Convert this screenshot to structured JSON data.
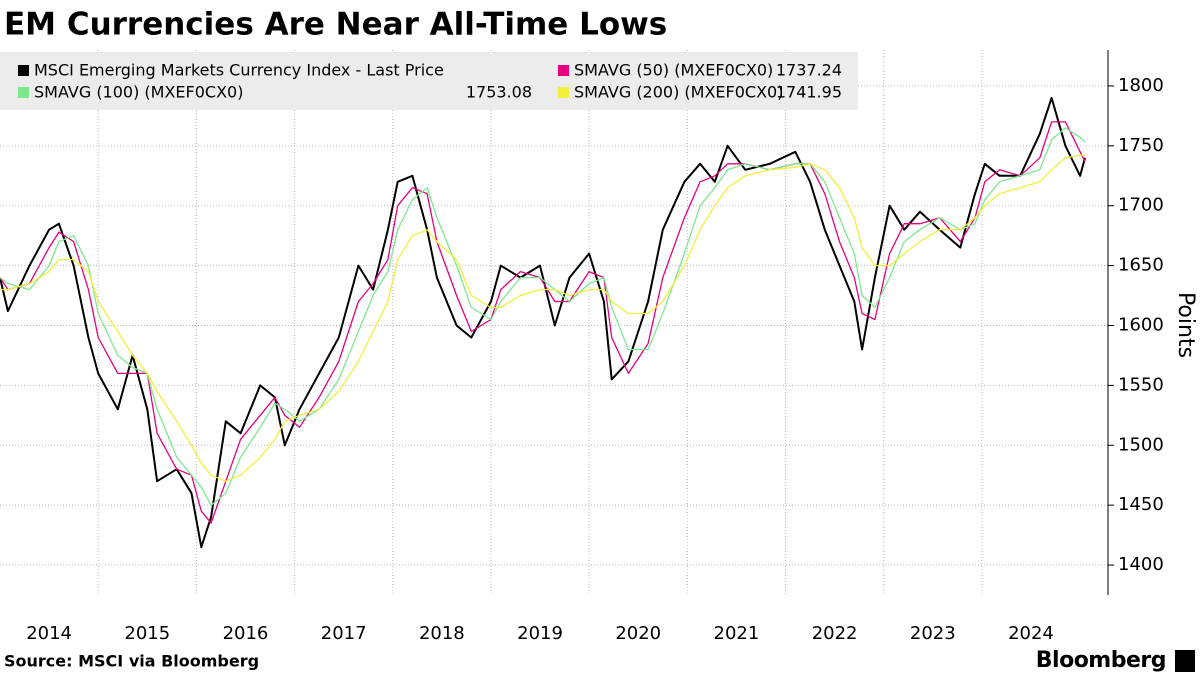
{
  "chart_data": {
    "type": "line",
    "title": "EM Currencies Are Near All-Time Lows",
    "source": "Source: MSCI via Bloomberg",
    "brand": "Bloomberg",
    "y_axis_label": "Points",
    "xlim": [
      2014,
      2025.05
    ],
    "xticks": [
      {
        "value": 2014.5,
        "label": "2014"
      },
      {
        "value": 2015.5,
        "label": "2015"
      },
      {
        "value": 2016.5,
        "label": "2016"
      },
      {
        "value": 2017.5,
        "label": "2017"
      },
      {
        "value": 2018.5,
        "label": "2018"
      },
      {
        "value": 2019.5,
        "label": "2019"
      },
      {
        "value": 2020.5,
        "label": "2020"
      },
      {
        "value": 2021.5,
        "label": "2021"
      },
      {
        "value": 2022.5,
        "label": "2022"
      },
      {
        "value": 2023.5,
        "label": "2023"
      },
      {
        "value": 2024.5,
        "label": "2024"
      }
    ],
    "xgrid": [
      2015,
      2016,
      2017,
      2018,
      2019,
      2020,
      2021,
      2022,
      2023,
      2024
    ],
    "ylim": [
      1375,
      1830
    ],
    "yticks": [
      1400,
      1450,
      1500,
      1550,
      1600,
      1650,
      1700,
      1750,
      1800
    ],
    "grid": true,
    "x": [
      2014.0,
      2014.08,
      2014.3,
      2014.5,
      2014.6,
      2014.75,
      2014.9,
      2015.0,
      2015.2,
      2015.35,
      2015.5,
      2015.6,
      2015.8,
      2015.95,
      2016.05,
      2016.15,
      2016.3,
      2016.45,
      2016.65,
      2016.8,
      2016.9,
      2017.05,
      2017.25,
      2017.45,
      2017.65,
      2017.8,
      2017.95,
      2018.05,
      2018.2,
      2018.35,
      2018.45,
      2018.65,
      2018.8,
      2019.0,
      2019.1,
      2019.3,
      2019.5,
      2019.65,
      2019.8,
      2020.0,
      2020.15,
      2020.23,
      2020.4,
      2020.6,
      2020.75,
      2020.97,
      2021.13,
      2021.28,
      2021.41,
      2021.59,
      2021.84,
      2022.1,
      2022.25,
      2022.4,
      2022.55,
      2022.7,
      2022.78,
      2022.91,
      2023.06,
      2023.21,
      2023.37,
      2023.57,
      2023.78,
      2023.93,
      2024.03,
      2024.18,
      2024.39,
      2024.59,
      2024.71,
      2024.85,
      2025.0,
      2025.05
    ],
    "series": [
      {
        "name": "MSCI Emerging Markets Currency Index - Last Price",
        "color": "#000000",
        "values": [
          1640,
          1612,
          1650,
          1680,
          1685,
          1650,
          1590,
          1560,
          1530,
          1575,
          1530,
          1470,
          1480,
          1460,
          1415,
          1440,
          1520,
          1510,
          1550,
          1540,
          1500,
          1530,
          1560,
          1590,
          1650,
          1630,
          1680,
          1720,
          1725,
          1680,
          1640,
          1600,
          1590,
          1620,
          1650,
          1640,
          1650,
          1600,
          1640,
          1660,
          1620,
          1555,
          1570,
          1620,
          1680,
          1720,
          1735,
          1720,
          1750,
          1730,
          1735,
          1745,
          1720,
          1680,
          1650,
          1620,
          1580,
          1640,
          1700,
          1680,
          1695,
          1680,
          1665,
          1710,
          1735,
          1725,
          1725,
          1760,
          1790,
          1750,
          1725,
          1740
        ]
      },
      {
        "name": "SMAVG (50) (MXEF0CX0)",
        "color": "#e6007e",
        "last": 1737.24,
        "values": [
          1640,
          1630,
          1635,
          1665,
          1678,
          1670,
          1630,
          1590,
          1560,
          1560,
          1560,
          1510,
          1480,
          1475,
          1445,
          1435,
          1470,
          1505,
          1525,
          1540,
          1525,
          1515,
          1540,
          1570,
          1620,
          1635,
          1655,
          1700,
          1715,
          1710,
          1670,
          1625,
          1595,
          1605,
          1630,
          1645,
          1640,
          1620,
          1620,
          1645,
          1640,
          1590,
          1560,
          1585,
          1640,
          1690,
          1720,
          1725,
          1735,
          1735,
          1730,
          1735,
          1735,
          1710,
          1670,
          1640,
          1610,
          1605,
          1660,
          1685,
          1685,
          1690,
          1670,
          1690,
          1720,
          1730,
          1725,
          1740,
          1770,
          1770,
          1745,
          1737
        ]
      },
      {
        "name": "SMAVG (100) (MXEF0CX0)",
        "color": "#7ee88e",
        "last": 1753.08,
        "values": [
          1640,
          1635,
          1630,
          1650,
          1670,
          1675,
          1650,
          1610,
          1575,
          1565,
          1560,
          1530,
          1490,
          1475,
          1465,
          1450,
          1460,
          1490,
          1515,
          1535,
          1530,
          1520,
          1530,
          1555,
          1595,
          1625,
          1645,
          1680,
          1705,
          1715,
          1690,
          1650,
          1615,
          1605,
          1620,
          1640,
          1640,
          1630,
          1620,
          1635,
          1640,
          1615,
          1580,
          1580,
          1610,
          1660,
          1700,
          1715,
          1730,
          1735,
          1730,
          1735,
          1735,
          1720,
          1690,
          1660,
          1625,
          1615,
          1640,
          1670,
          1680,
          1690,
          1680,
          1685,
          1705,
          1720,
          1725,
          1730,
          1755,
          1765,
          1757,
          1753
        ]
      },
      {
        "name": "SMAVG (200) (MXEF0CX0)",
        "color": "#f2ee3a",
        "last": 1741.95,
        "values": [
          1630,
          1630,
          1635,
          1645,
          1655,
          1655,
          1645,
          1620,
          1595,
          1575,
          1560,
          1545,
          1520,
          1500,
          1485,
          1475,
          1470,
          1475,
          1490,
          1505,
          1520,
          1525,
          1530,
          1545,
          1570,
          1595,
          1620,
          1655,
          1675,
          1680,
          1670,
          1655,
          1625,
          1615,
          1615,
          1625,
          1630,
          1630,
          1625,
          1630,
          1630,
          1620,
          1610,
          1610,
          1620,
          1650,
          1680,
          1700,
          1715,
          1725,
          1730,
          1732,
          1735,
          1730,
          1715,
          1690,
          1665,
          1650,
          1650,
          1660,
          1670,
          1680,
          1680,
          1690,
          1700,
          1710,
          1715,
          1720,
          1730,
          1740,
          1742,
          1742
        ]
      }
    ]
  }
}
